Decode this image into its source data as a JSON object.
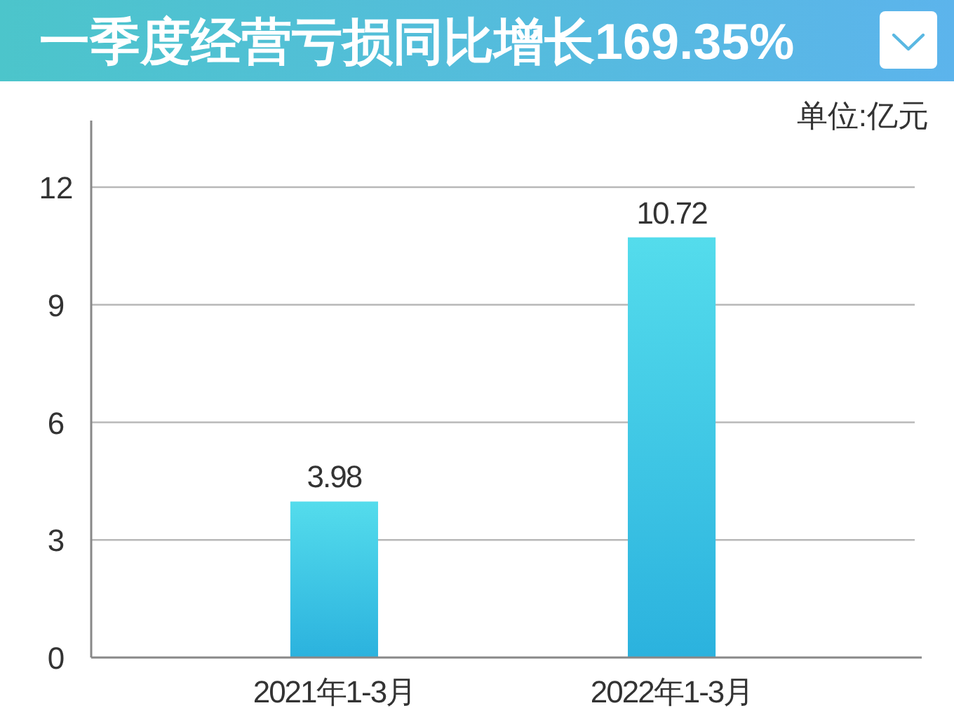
{
  "chart_data": {
    "type": "bar",
    "title": "一季度经营亏损同比增长169.35%",
    "annotations": [
      "单位:亿元"
    ],
    "categories": [
      "2021年1-3月",
      "2022年1-3月"
    ],
    "values": [
      3.98,
      10.72
    ],
    "color": "#3ec3e6",
    "ylim": [
      0,
      13.7
    ],
    "yticks": [
      0,
      3,
      6,
      9,
      12
    ],
    "grid": "y",
    "data_labels": true
  }
}
